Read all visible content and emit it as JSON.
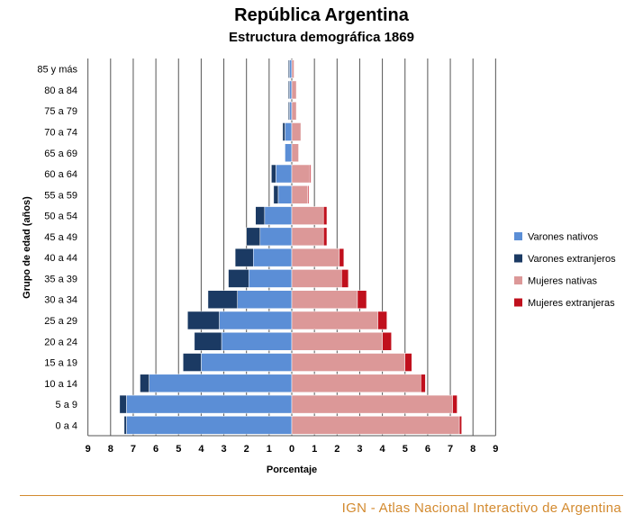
{
  "header": {
    "title": "República Argentina",
    "subtitle": "Estructura demográfica 1869"
  },
  "footer": {
    "text": "IGN - Atlas Nacional Interactivo de Argentina"
  },
  "colors": {
    "varones_nativos": "#5b8ed6",
    "varones_extranjeros": "#1b3a63",
    "mujeres_nativas": "#dc9898",
    "mujeres_extranjeras": "#c0101d",
    "grid": "#555555",
    "footer": "#d38a2f"
  },
  "chart_data": {
    "type": "bar",
    "orientation": "horizontal-pyramid",
    "title": "República Argentina",
    "subtitle": "Estructura demográfica 1869",
    "xlabel": "Porcentaje",
    "ylabel": "Grupo de edad (años)",
    "xlim": [
      -9,
      9
    ],
    "xticks": [
      "9",
      "8",
      "7",
      "6",
      "5",
      "4",
      "3",
      "2",
      "1",
      "0",
      "1",
      "2",
      "3",
      "4",
      "5",
      "6",
      "7",
      "8",
      "9"
    ],
    "grid": true,
    "legend_position": "right",
    "categories": [
      "0 a 4",
      "5 a 9",
      "10 a 14",
      "15 a 19",
      "20 a 24",
      "25 a 29",
      "30 a 34",
      "35 a 39",
      "40 a 44",
      "45 a 49",
      "50 a 54",
      "55 a 59",
      "60 a 64",
      "65 a 69",
      "70 a 74",
      "75 a 79",
      "80 a 84",
      "85 y más"
    ],
    "series": [
      {
        "name": "Varones nativos",
        "side": "left",
        "values": [
          7.3,
          7.3,
          6.3,
          4.0,
          3.1,
          3.2,
          2.4,
          1.9,
          1.7,
          1.4,
          1.2,
          0.6,
          0.7,
          0.3,
          0.3,
          0.1,
          0.1,
          0.1
        ]
      },
      {
        "name": "Varones extranjeros",
        "side": "left",
        "values": [
          0.1,
          0.3,
          0.4,
          0.8,
          1.2,
          1.4,
          1.3,
          0.9,
          0.8,
          0.6,
          0.4,
          0.2,
          0.2,
          0.0,
          0.1,
          0.05,
          0.05,
          0.05
        ]
      },
      {
        "name": "Mujeres nativas",
        "side": "right",
        "values": [
          7.4,
          7.1,
          5.7,
          5.0,
          4.0,
          3.8,
          2.9,
          2.2,
          2.1,
          1.4,
          1.4,
          0.7,
          0.8,
          0.3,
          0.4,
          0.2,
          0.2,
          0.1
        ]
      },
      {
        "name": "Mujeres extranjeras",
        "side": "right",
        "values": [
          0.1,
          0.2,
          0.2,
          0.3,
          0.4,
          0.4,
          0.4,
          0.3,
          0.2,
          0.15,
          0.15,
          0.05,
          0.05,
          0.0,
          0.0,
          0.0,
          0.0,
          0.0
        ]
      }
    ]
  }
}
